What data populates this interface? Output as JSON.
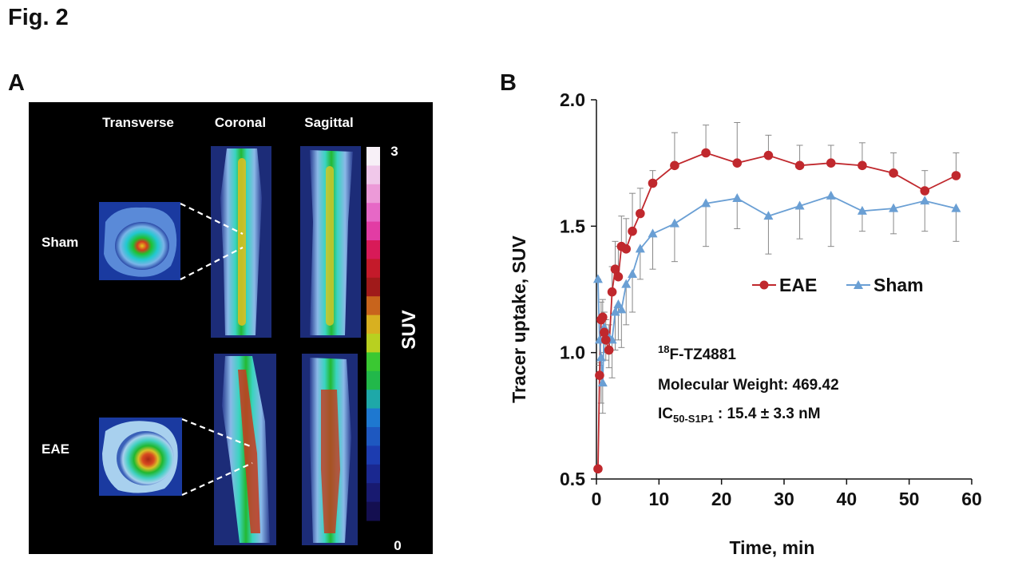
{
  "figure": {
    "title": "Fig. 2",
    "panel_a_label": "A",
    "panel_b_label": "B"
  },
  "panel_a": {
    "views": [
      "Transverse",
      "Coronal",
      "Sagittal"
    ],
    "rows": [
      "Sham",
      "EAE"
    ],
    "colorbar": {
      "label": "SUV",
      "max_label": "3",
      "min_label": "0"
    },
    "colors": {
      "background": "#000000",
      "text": "#ffffff"
    }
  },
  "chart_data": {
    "type": "line",
    "xlabel": "Time, min",
    "ylabel": "Tracer uptake, SUV",
    "xlim": [
      0,
      60
    ],
    "ylim": [
      0.5,
      2.0
    ],
    "xticks": [
      0,
      10,
      20,
      30,
      40,
      50,
      60
    ],
    "yticks": [
      0.5,
      1.0,
      1.5,
      2.0
    ],
    "ytick_labels": [
      "0.5",
      "1.0",
      "1.5",
      "2.0"
    ],
    "legend_position": "center-right",
    "grid": false,
    "series": [
      {
        "name": "EAE",
        "color": "#c0282d",
        "marker": "circle",
        "x": [
          0.25,
          0.5,
          0.75,
          1.0,
          1.25,
          1.5,
          2.0,
          2.5,
          3.0,
          3.5,
          4.0,
          4.75,
          5.75,
          7.0,
          9.0,
          12.5,
          17.5,
          22.5,
          27.5,
          32.5,
          37.5,
          42.5,
          47.5,
          52.5,
          57.5
        ],
        "values": [
          0.54,
          0.91,
          1.13,
          1.14,
          1.08,
          1.05,
          1.01,
          1.24,
          1.33,
          1.3,
          1.42,
          1.41,
          1.48,
          1.55,
          1.67,
          1.74,
          1.79,
          1.75,
          1.78,
          1.74,
          1.75,
          1.74,
          1.71,
          1.64,
          1.7
        ],
        "errors": [
          0.0,
          0.05,
          0.07,
          0.07,
          0.08,
          0.08,
          0.1,
          0.1,
          0.11,
          0.12,
          0.12,
          0.12,
          0.15,
          0.1,
          0.05,
          0.13,
          0.11,
          0.16,
          0.08,
          0.08,
          0.07,
          0.09,
          0.08,
          0.08,
          0.09
        ]
      },
      {
        "name": "Sham",
        "color": "#6a9fd4",
        "marker": "triangle",
        "x": [
          0.25,
          0.5,
          0.75,
          1.0,
          1.25,
          1.5,
          2.0,
          2.5,
          3.0,
          3.5,
          4.0,
          4.75,
          5.75,
          7.0,
          9.0,
          12.5,
          17.5,
          22.5,
          27.5,
          32.5,
          37.5,
          42.5,
          47.5,
          52.5,
          57.5
        ],
        "values": [
          1.29,
          1.05,
          0.98,
          0.88,
          1.1,
          1.07,
          1.06,
          1.05,
          1.16,
          1.19,
          1.17,
          1.27,
          1.31,
          1.41,
          1.47,
          1.51,
          1.59,
          1.61,
          1.54,
          1.58,
          1.62,
          1.56,
          1.57,
          1.6,
          1.57
        ]
      }
    ]
  },
  "annotation": {
    "compound": "18F-TZ4881",
    "compound_superscript": "18",
    "compound_name": "F-TZ4881",
    "mw_line": "Molecular Weight: 469.42",
    "ic50_prefix": "IC",
    "ic50_subscript": "50-S1P1",
    "ic50_value": " : 15.4 ± 3.3 nM"
  }
}
